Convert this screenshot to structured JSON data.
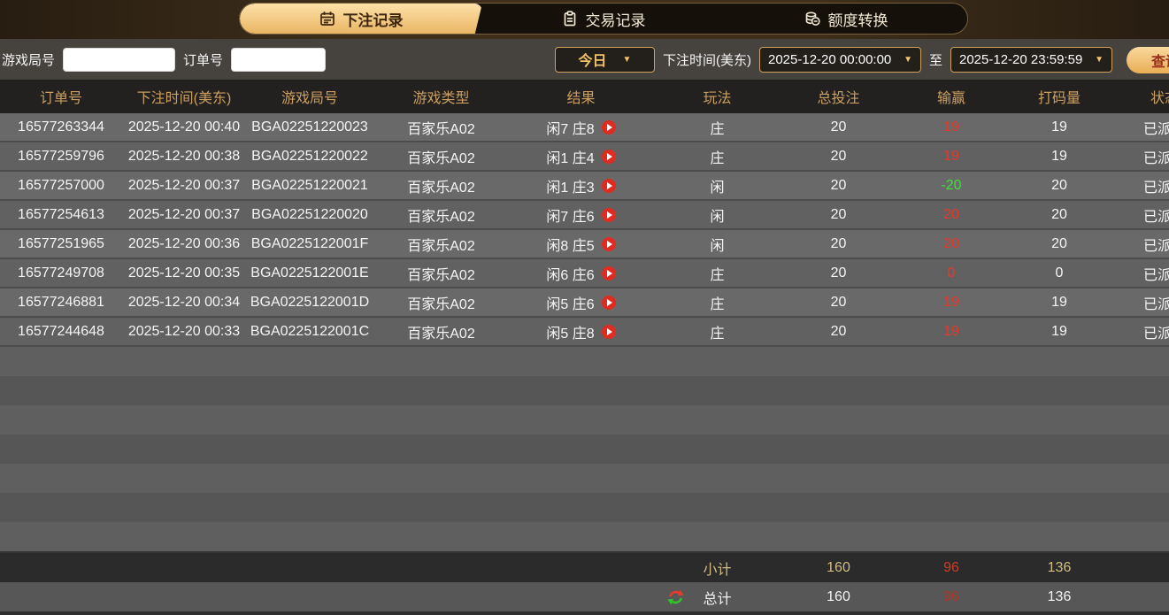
{
  "tabs": [
    {
      "label": "下注记录",
      "icon": "calendar-icon",
      "active": true
    },
    {
      "label": "交易记录",
      "icon": "clipboard-icon",
      "active": false
    },
    {
      "label": "额度转换",
      "icon": "coins-icon",
      "active": false
    }
  ],
  "filters": {
    "game_round_label": "游戏局号",
    "game_round_value": "",
    "order_label": "订单号",
    "order_value": "",
    "range_preset": "今日",
    "bet_time_label": "下注时间(美东)",
    "start_time": "2025-12-20 00:00:00",
    "to_label": "至",
    "end_time": "2025-12-20 23:59:59",
    "search_label": "查询"
  },
  "table": {
    "headers": [
      "订单号",
      "下注时间(美东)",
      "游戏局号",
      "游戏类型",
      "结果",
      "玩法",
      "总投注",
      "输赢",
      "打码量",
      "状态"
    ],
    "rows": [
      {
        "order_id": "16577263344",
        "bet_time": "2025-12-20 00:40",
        "round_id": "BGA02251220023",
        "game_type": "百家乐A02",
        "result": "闲7 庄8",
        "play": "庄",
        "total_bet": "20",
        "win_loss": "19",
        "turnover": "19",
        "status": "已派彩"
      },
      {
        "order_id": "16577259796",
        "bet_time": "2025-12-20 00:38",
        "round_id": "BGA02251220022",
        "game_type": "百家乐A02",
        "result": "闲1 庄4",
        "play": "庄",
        "total_bet": "20",
        "win_loss": "19",
        "turnover": "19",
        "status": "已派彩"
      },
      {
        "order_id": "16577257000",
        "bet_time": "2025-12-20 00:37",
        "round_id": "BGA02251220021",
        "game_type": "百家乐A02",
        "result": "闲1 庄3",
        "play": "闲",
        "total_bet": "20",
        "win_loss": "-20",
        "turnover": "20",
        "status": "已派彩"
      },
      {
        "order_id": "16577254613",
        "bet_time": "2025-12-20 00:37",
        "round_id": "BGA02251220020",
        "game_type": "百家乐A02",
        "result": "闲7 庄6",
        "play": "闲",
        "total_bet": "20",
        "win_loss": "20",
        "turnover": "20",
        "status": "已派彩"
      },
      {
        "order_id": "16577251965",
        "bet_time": "2025-12-20 00:36",
        "round_id": "BGA0225122001F",
        "game_type": "百家乐A02",
        "result": "闲8 庄5",
        "play": "闲",
        "total_bet": "20",
        "win_loss": "20",
        "turnover": "20",
        "status": "已派彩"
      },
      {
        "order_id": "16577249708",
        "bet_time": "2025-12-20 00:35",
        "round_id": "BGA0225122001E",
        "game_type": "百家乐A02",
        "result": "闲6 庄6",
        "play": "庄",
        "total_bet": "20",
        "win_loss": "0",
        "turnover": "0",
        "status": "已派彩"
      },
      {
        "order_id": "16577246881",
        "bet_time": "2025-12-20 00:34",
        "round_id": "BGA0225122001D",
        "game_type": "百家乐A02",
        "result": "闲5 庄6",
        "play": "庄",
        "total_bet": "20",
        "win_loss": "19",
        "turnover": "19",
        "status": "已派彩"
      },
      {
        "order_id": "16577244648",
        "bet_time": "2025-12-20 00:33",
        "round_id": "BGA0225122001C",
        "game_type": "百家乐A02",
        "result": "闲5 庄8",
        "play": "庄",
        "total_bet": "20",
        "win_loss": "19",
        "turnover": "19",
        "status": "已派彩"
      }
    ],
    "subtotal": {
      "label": "小计",
      "total_bet": "160",
      "win_loss": "96",
      "turnover": "136"
    },
    "total": {
      "label": "总计",
      "total_bet": "160",
      "win_loss": "96",
      "turnover": "136"
    }
  },
  "colors": {
    "accent_gold": "#e9b564",
    "win_red": "#e8382a",
    "loss_green": "#3fe03f",
    "header_text": "#cb9f62"
  }
}
